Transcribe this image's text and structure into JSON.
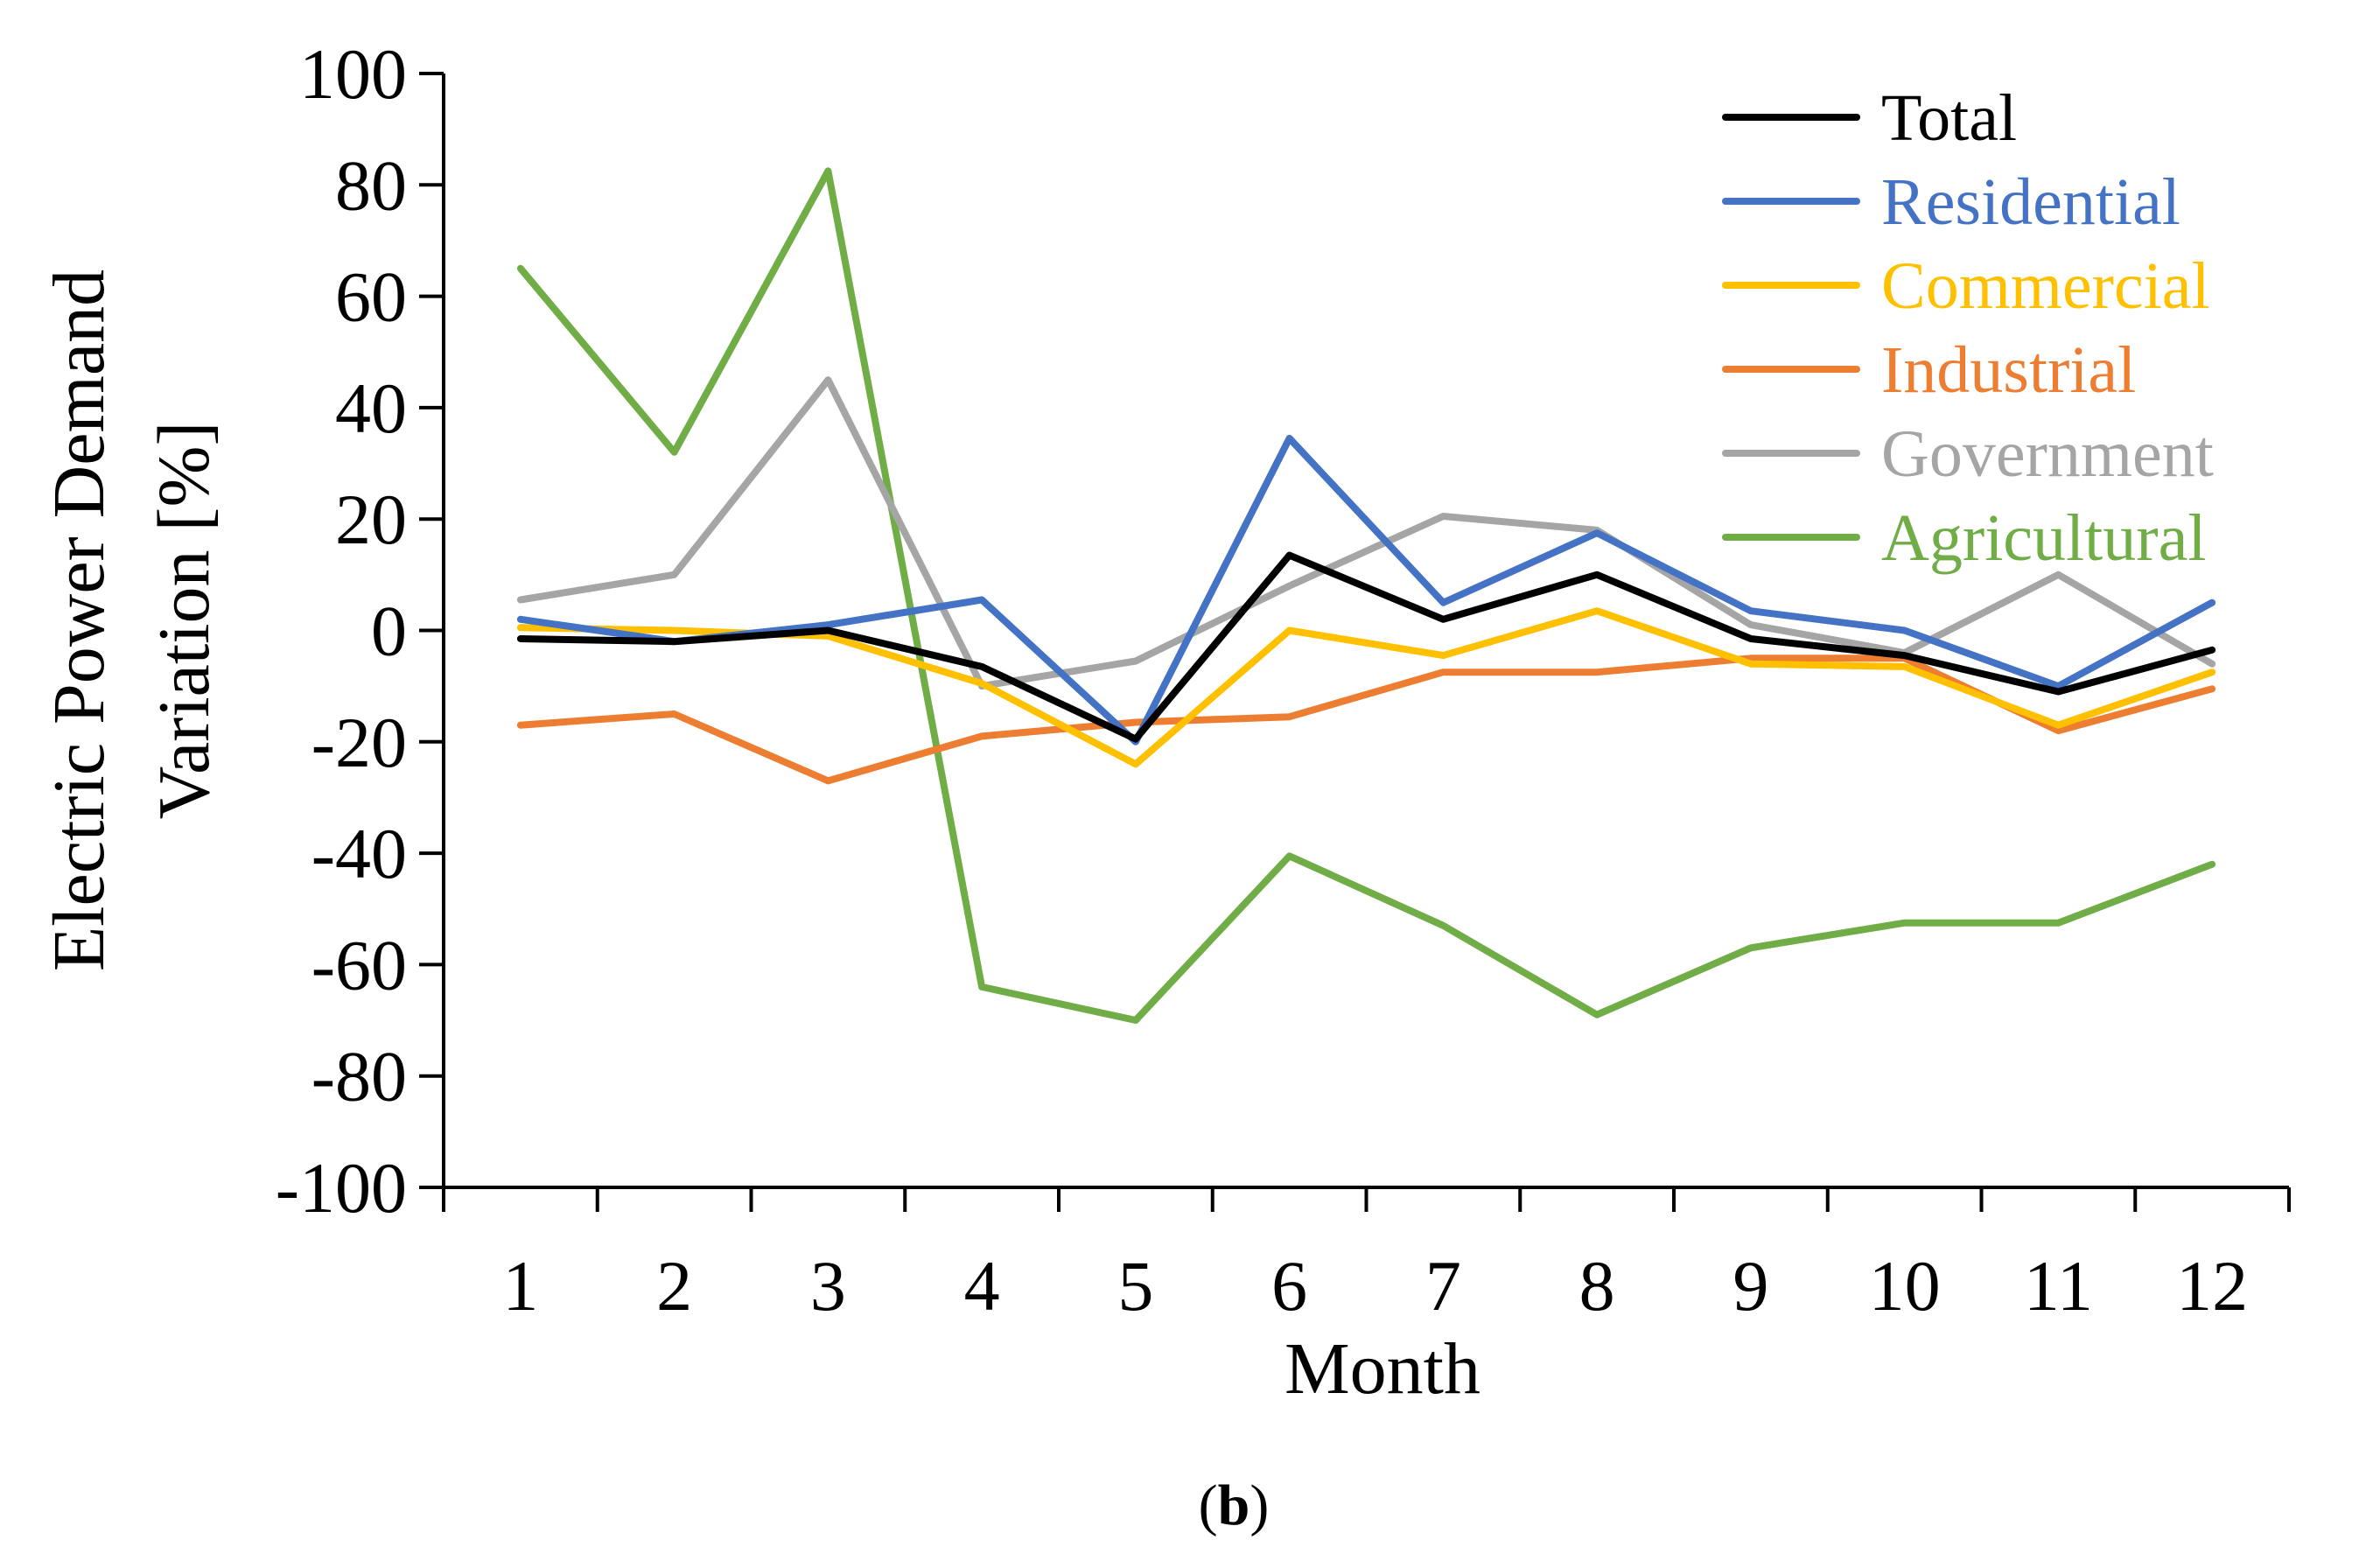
{
  "chart_data": {
    "type": "line",
    "title": "",
    "xlabel": "Month",
    "ylabel_line1": "Electric Power Demand",
    "ylabel_line2": "Variation [%]",
    "caption_open": "(",
    "caption_letter": "b",
    "caption_close": ")",
    "categories": [
      "1",
      "2",
      "3",
      "4",
      "5",
      "6",
      "7",
      "8",
      "9",
      "10",
      "11",
      "12"
    ],
    "ylim": [
      -100,
      100
    ],
    "yticks": [
      -100,
      -80,
      -60,
      -40,
      -20,
      0,
      20,
      40,
      60,
      80,
      100
    ],
    "grid": false,
    "legend_position": "top-right",
    "series": [
      {
        "name": "Total",
        "color": "#000000",
        "values": [
          -1.5,
          -2,
          0,
          -6.5,
          -19.5,
          13.5,
          2,
          10,
          -1.5,
          -4.5,
          -11,
          -3.5
        ]
      },
      {
        "name": "Residential",
        "color": "#4472C4",
        "values": [
          2,
          -2,
          1,
          5.5,
          -20,
          34.5,
          5,
          17.5,
          3.5,
          0,
          -10,
          5
        ]
      },
      {
        "name": "Commercial",
        "color": "#FFC000",
        "values": [
          0.5,
          0,
          -1,
          -9.5,
          -24,
          0,
          -4.5,
          3.5,
          -6,
          -6.5,
          -17,
          -7.5
        ]
      },
      {
        "name": "Industrial",
        "color": "#ED7D31",
        "values": [
          -17,
          -15,
          -27,
          -19,
          -16.5,
          -15.5,
          -7.5,
          -7.5,
          -5,
          -5,
          -18,
          -10.5
        ]
      },
      {
        "name": "Government",
        "color": "#A5A5A5",
        "values": [
          5.5,
          10,
          45,
          -10,
          -5.5,
          8,
          20.5,
          18,
          1,
          -4,
          10,
          -6
        ]
      },
      {
        "name": "Agricultural",
        "color": "#70AD47",
        "values": [
          65,
          32,
          82.5,
          -64,
          -70,
          -40.5,
          -53,
          -69,
          -57,
          -52.5,
          -52.5,
          -42
        ]
      }
    ]
  }
}
